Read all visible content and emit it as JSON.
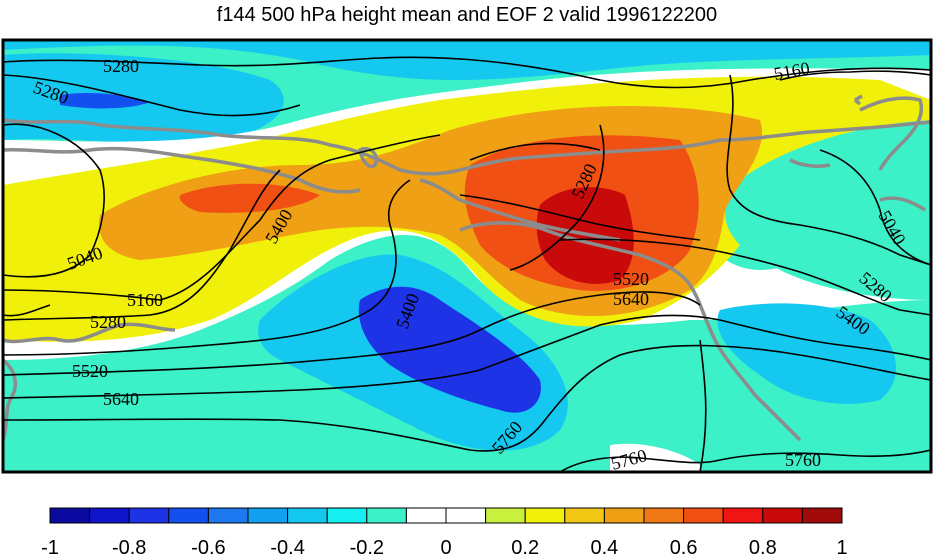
{
  "title": "f144 500 hPa height mean and EOF 2 valid 1996122200",
  "colorbar": {
    "colors": [
      "#0a0aa0",
      "#0f14c8",
      "#1e32e6",
      "#1450f0",
      "#1e78f0",
      "#14a0f0",
      "#14c8f0",
      "#14f0f0",
      "#3cf0c8",
      "#ffffff",
      "#ffffff",
      "#c8f03c",
      "#f0f00a",
      "#f0c814",
      "#f0a014",
      "#f07814",
      "#f05014",
      "#f01414",
      "#c80a0a",
      "#a00a0a"
    ],
    "tick_labels": [
      "-1",
      "-0.8",
      "-0.6",
      "-0.4",
      "-0.2",
      "0",
      "0.2",
      "0.4",
      "0.6",
      "0.8",
      "1"
    ]
  },
  "contour_labels": [
    {
      "text": "5280",
      "rotate": 0
    },
    {
      "text": "5280",
      "rotate": 20
    },
    {
      "text": "5160",
      "rotate": -10
    },
    {
      "text": "5040",
      "rotate": -20
    },
    {
      "text": "5160",
      "rotate": 0
    },
    {
      "text": "5280",
      "rotate": 0
    },
    {
      "text": "5400",
      "rotate": -60
    },
    {
      "text": "5400",
      "rotate": -70
    },
    {
      "text": "5280",
      "rotate": -65
    },
    {
      "text": "5520",
      "rotate": 0
    },
    {
      "text": "5640",
      "rotate": 0
    },
    {
      "text": "5520",
      "rotate": 0
    },
    {
      "text": "5640",
      "rotate": 0
    },
    {
      "text": "5760",
      "rotate": -50
    },
    {
      "text": "5760",
      "rotate": -15
    },
    {
      "text": "5760",
      "rotate": 0
    },
    {
      "text": "5040",
      "rotate": 60
    },
    {
      "text": "5280",
      "rotate": 40
    },
    {
      "text": "5400",
      "rotate": 35
    }
  ]
}
